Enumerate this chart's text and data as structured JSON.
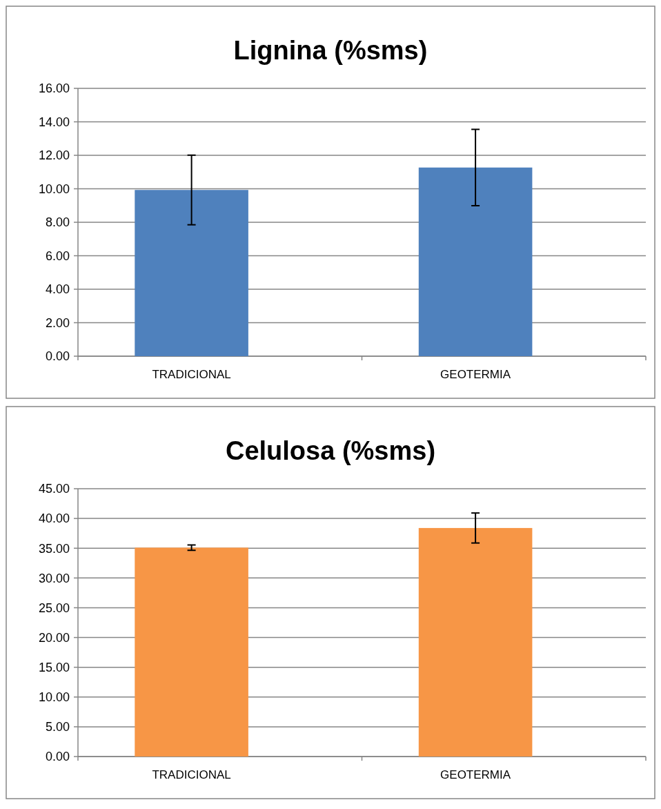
{
  "chart_data": [
    {
      "type": "bar",
      "title": "Lignina (%sms)",
      "categories": [
        "TRADICIONAL",
        "GEOTERMIA"
      ],
      "values": [
        9.93,
        11.27
      ],
      "errors": [
        2.08,
        2.28
      ],
      "color": "#4f81bd",
      "ylim": [
        0,
        16
      ],
      "yticks": [
        {
          "value": 0,
          "label": "0.00"
        },
        {
          "value": 2,
          "label": "2.00"
        },
        {
          "value": 4,
          "label": "4.00"
        },
        {
          "value": 6,
          "label": "6.00"
        },
        {
          "value": 8,
          "label": "8.00"
        },
        {
          "value": 10,
          "label": "10.00"
        },
        {
          "value": 12,
          "label": "12.00"
        },
        {
          "value": 14,
          "label": "14.00"
        },
        {
          "value": 16,
          "label": "16.00"
        }
      ],
      "grid": "y"
    },
    {
      "type": "bar",
      "title": "Celulosa (%sms)",
      "categories": [
        "TRADICIONAL",
        "GEOTERMIA"
      ],
      "values": [
        35.1,
        38.4
      ],
      "errors": [
        0.45,
        2.52
      ],
      "color": "#f79646",
      "ylim": [
        0,
        45
      ],
      "yticks": [
        {
          "value": 0,
          "label": "0.00"
        },
        {
          "value": 5,
          "label": "5.00"
        },
        {
          "value": 10,
          "label": "10.00"
        },
        {
          "value": 15,
          "label": "15.00"
        },
        {
          "value": 20,
          "label": "20.00"
        },
        {
          "value": 25,
          "label": "25.00"
        },
        {
          "value": 30,
          "label": "30.00"
        },
        {
          "value": 35,
          "label": "35.00"
        },
        {
          "value": 40,
          "label": "40.00"
        },
        {
          "value": 45,
          "label": "45.00"
        }
      ],
      "grid": "y"
    }
  ]
}
